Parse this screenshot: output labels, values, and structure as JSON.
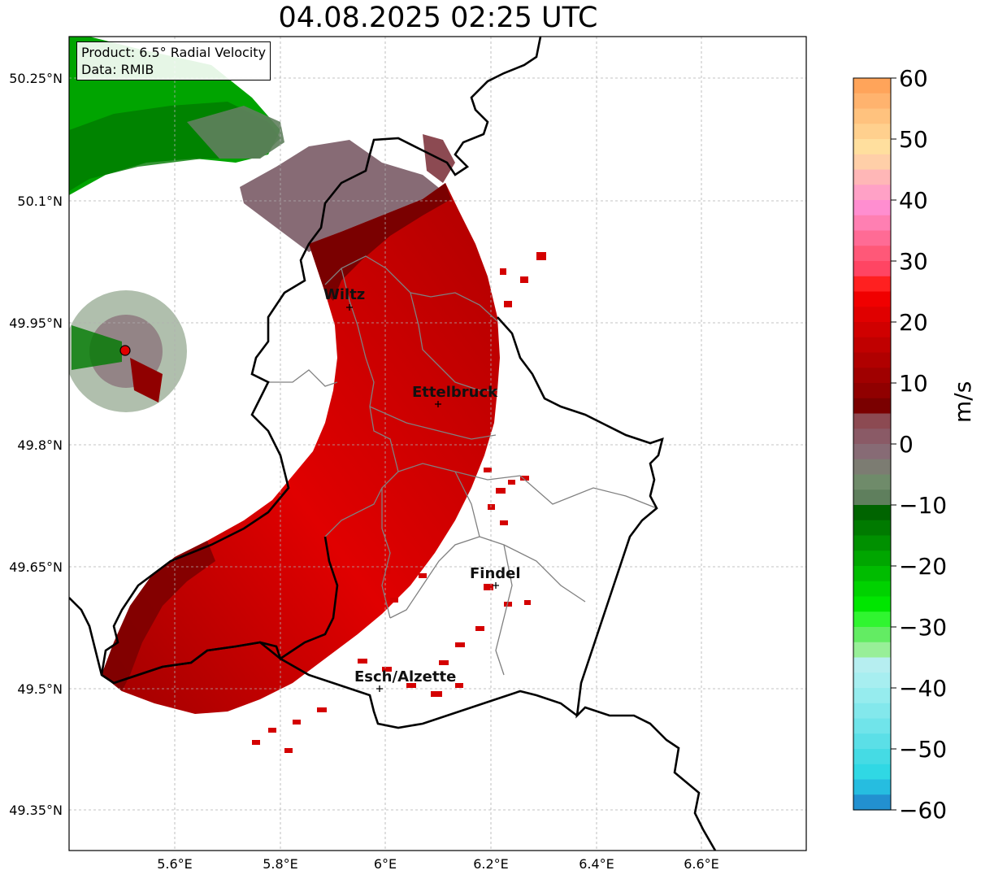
{
  "title": "04.08.2025 02:25 UTC",
  "infobox": {
    "product": "Product: 6.5° Radial Velocity",
    "data_source": "Data: RMIB"
  },
  "axes": {
    "lon_ticks": [
      "5.6°E",
      "5.8°E",
      "6°E",
      "6.2°E",
      "6.4°E",
      "6.6°E"
    ],
    "lat_ticks": [
      "50.25°N",
      "50.1°N",
      "49.95°N",
      "49.8°N",
      "49.65°N",
      "49.5°N",
      "49.35°N"
    ]
  },
  "cities": [
    {
      "name": "Wiltz"
    },
    {
      "name": "Ettelbruck"
    },
    {
      "name": "Findel"
    },
    {
      "name": "Esch/Alzette"
    }
  ],
  "colorbar": {
    "unit": "m/s",
    "ticks": [
      "60",
      "50",
      "40",
      "30",
      "20",
      "10",
      "0",
      "−10",
      "−20",
      "−30",
      "−40",
      "−50",
      "−60"
    ],
    "colors": [
      "#ffa45a",
      "#ffb36e",
      "#ffc27e",
      "#ffd08e",
      "#ffdf9e",
      "#ffcfa8",
      "#ffb7b7",
      "#ffa1c6",
      "#ff8ed0",
      "#ff7fb2",
      "#ff6b95",
      "#ff5878",
      "#ff4563",
      "#ff2020",
      "#f00000",
      "#e00000",
      "#d00000",
      "#c00000",
      "#b00000",
      "#a00000",
      "#900000",
      "#7a0000",
      "#8c4a52",
      "#8a5a66",
      "#876b75",
      "#7c7c72",
      "#6f8b6a",
      "#5f7f5d",
      "#006400",
      "#007a00",
      "#009000",
      "#00a600",
      "#00bc00",
      "#00d200",
      "#00e600",
      "#30f530",
      "#63ec63",
      "#98ef98",
      "#b6eef0",
      "#a7eef0",
      "#96ecee",
      "#83e8ec",
      "#70e4ea",
      "#5bdfe7",
      "#45dbe4",
      "#30d8e4",
      "#26bde0",
      "#2290d0"
    ]
  },
  "legend_colors": {
    "outbound": "#d40000",
    "outbound_dark": "#7a0000",
    "inbound": "#00a000",
    "near_zero": "#8a6b72",
    "near_zero_green": "#5f7f5d",
    "radar_site": "#e00000"
  }
}
